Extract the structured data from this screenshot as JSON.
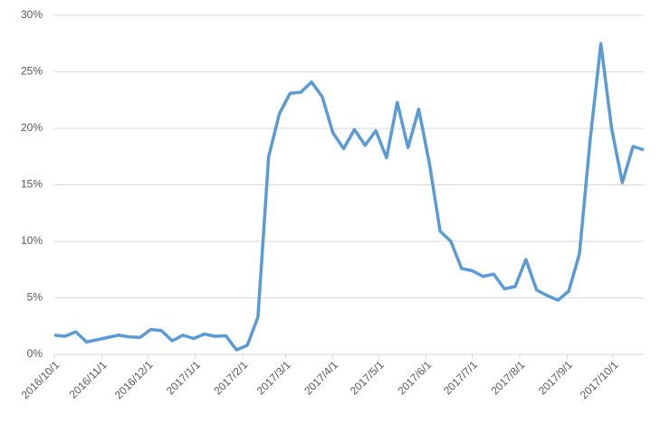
{
  "chart_data": {
    "type": "line",
    "x": [
      "2016/10/1",
      "2016/10/8",
      "2016/10/15",
      "2016/10/22",
      "2016/10/29",
      "2016/11/5",
      "2016/11/12",
      "2016/11/19",
      "2016/11/26",
      "2016/12/3",
      "2016/12/10",
      "2016/12/17",
      "2016/12/24",
      "2016/12/31",
      "2017/1/7",
      "2017/1/14",
      "2017/1/21",
      "2017/1/28",
      "2017/2/4",
      "2017/2/11",
      "2017/2/18",
      "2017/2/25",
      "2017/3/4",
      "2017/3/11",
      "2017/3/18",
      "2017/3/25",
      "2017/4/1",
      "2017/4/8",
      "2017/4/15",
      "2017/4/22",
      "2017/4/29",
      "2017/5/6",
      "2017/5/13",
      "2017/5/20",
      "2017/5/27",
      "2017/6/3",
      "2017/6/10",
      "2017/6/17",
      "2017/6/24",
      "2017/7/1",
      "2017/7/8",
      "2017/7/15",
      "2017/7/22",
      "2017/7/29",
      "2017/8/5",
      "2017/8/12",
      "2017/8/19",
      "2017/8/26",
      "2017/9/2",
      "2017/9/9",
      "2017/9/16",
      "2017/9/23",
      "2017/9/30",
      "2017/10/7",
      "2017/10/14",
      "2017/10/21"
    ],
    "series": [
      {
        "color": "#5b9bd5",
        "values": [
          1.7,
          1.6,
          2.0,
          1.1,
          1.3,
          1.5,
          1.7,
          1.55,
          1.5,
          2.2,
          2.1,
          1.2,
          1.7,
          1.4,
          1.8,
          1.6,
          1.65,
          0.4,
          0.8,
          3.3,
          17.5,
          21.3,
          23.1,
          23.2,
          24.1,
          22.8,
          19.6,
          18.2,
          19.9,
          18.5,
          19.8,
          17.4,
          22.3,
          18.3,
          21.7,
          16.9,
          10.9,
          10.0,
          7.6,
          7.4,
          6.9,
          7.1,
          5.8,
          6.0,
          8.4,
          5.7,
          5.2,
          4.8,
          5.6,
          8.9,
          19.0,
          27.5,
          20.0,
          15.2,
          18.4,
          18.1
        ]
      }
    ],
    "xlim": [
      "2016/10/1",
      "2017/10/21"
    ],
    "xticks": [
      "2016/10/1",
      "2016/11/1",
      "2016/12/1",
      "2017/1/1",
      "2017/2/1",
      "2017/3/1",
      "2017/4/1",
      "2017/5/1",
      "2017/6/1",
      "2017/7/1",
      "2017/8/1",
      "2017/9/1",
      "2017/10/1"
    ],
    "ylim": [
      0,
      30
    ],
    "yticks": [
      {
        "value": 0,
        "label": "0%"
      },
      {
        "value": 5,
        "label": "5%"
      },
      {
        "value": 10,
        "label": "10%"
      },
      {
        "value": 15,
        "label": "15%"
      },
      {
        "value": 20,
        "label": "20%"
      },
      {
        "value": 25,
        "label": "25%"
      },
      {
        "value": 30,
        "label": "30%"
      }
    ],
    "grid": true
  }
}
